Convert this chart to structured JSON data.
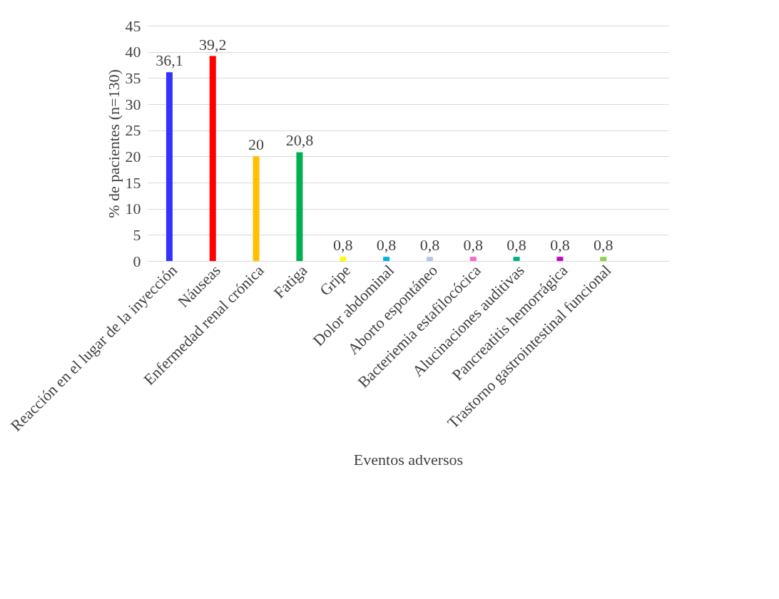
{
  "chart_data": {
    "type": "bar",
    "xlabel": "Eventos adversos",
    "ylabel": "% de pacientes (n=130)",
    "categories": [
      "Reacción en el lugar de la inyección",
      "Náuseas",
      "Enfermedad renal crónica",
      "Fatiga",
      "Gripe",
      "Dolor abdominal",
      "Aborto espontáneo",
      "Bacteriemia estafilocócica",
      "Alucinaciones auditivas",
      "Pancreatitis hemorrágica",
      "Trastorno gastrointestinal funcional",
      null
    ],
    "values": [
      36.1,
      39.2,
      20,
      20.8,
      0.8,
      0.8,
      0.8,
      0.8,
      0.8,
      0.8,
      0.8,
      null
    ],
    "colors": [
      "#3333ff",
      "#ff0000",
      "#ffc000",
      "#00b050",
      "#ffff00",
      "#00b0f0",
      "#b4c7e7",
      "#ff66cc",
      "#00b08c",
      "#cc00cc",
      "#92d050",
      "#ffffff"
    ],
    "value_labels": [
      "36,1",
      "39,2",
      "20",
      "20,8",
      "0,8",
      "0,8",
      "0,8",
      "0,8",
      "0,8",
      "0,8",
      "0,8",
      null
    ],
    "ylim": [
      0,
      45
    ],
    "yticks": [
      0,
      5,
      10,
      15,
      20,
      25,
      30,
      35,
      40,
      45
    ],
    "grid": "y"
  }
}
